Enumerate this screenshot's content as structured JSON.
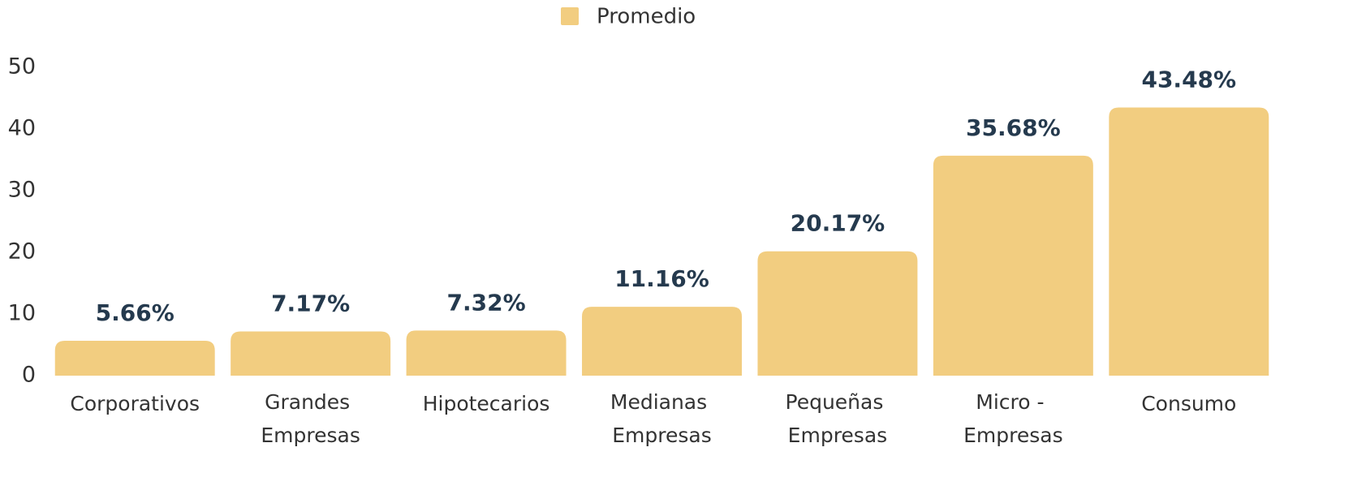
{
  "chart_data": {
    "type": "bar",
    "categories": [
      "Corporativos",
      "Grandes Empresas",
      "Hipotecarios",
      "Medianas Empresas",
      "Pequeñas Empresas",
      "Micro - Empresas",
      "Consumo"
    ],
    "series": [
      {
        "name": "Promedio",
        "color": "#f2cd80",
        "values": [
          5.66,
          7.17,
          7.32,
          11.16,
          20.17,
          35.68,
          43.48
        ],
        "value_labels": [
          "5.66%",
          "7.17%",
          "7.32%",
          "11.16%",
          "20.17%",
          "35.68%",
          "43.48%"
        ]
      }
    ],
    "ylim": [
      0,
      50
    ],
    "yticks": [
      0,
      10,
      20,
      30,
      40,
      50
    ],
    "grid": false,
    "legend": "top"
  }
}
